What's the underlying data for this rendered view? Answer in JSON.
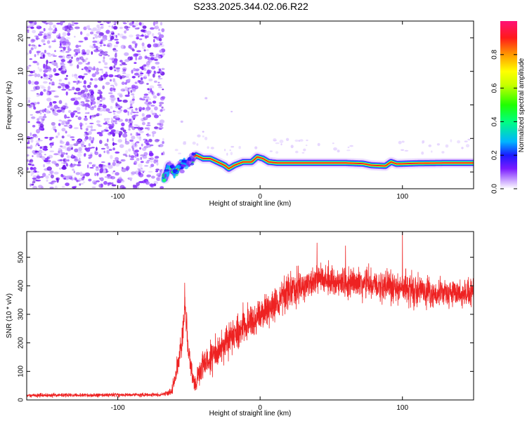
{
  "figure_title": "S233.2025.344.02.06.R22",
  "colors": {
    "spectro_low": "#7a1bff",
    "snr_line": "#ee2222",
    "axis": "#000000"
  },
  "chart_data": [
    {
      "type": "heatmap",
      "name": "spectrogram",
      "xlabel": "Height of straight line (km)",
      "ylabel": "Frequency (Hz)",
      "xlim": [
        -164,
        150
      ],
      "ylim": [
        -25,
        25
      ],
      "x_ticks": [
        -100,
        0,
        100
      ],
      "y_ticks": [
        -20,
        -10,
        0,
        10,
        20
      ],
      "grid": false,
      "noise_region_x": [
        -164,
        -68
      ],
      "ridge": {
        "description": "dominant frequency track",
        "points": [
          [
            -67,
            -22
          ],
          [
            -64,
            -18
          ],
          [
            -60,
            -20
          ],
          [
            -56,
            -18
          ],
          [
            -50,
            -17
          ],
          [
            -45,
            -15
          ],
          [
            -40,
            -16
          ],
          [
            -35,
            -16
          ],
          [
            -30,
            -17
          ],
          [
            -25,
            -18
          ],
          [
            -22,
            -19
          ],
          [
            -18,
            -18
          ],
          [
            -12,
            -17
          ],
          [
            -6,
            -17
          ],
          [
            -2,
            -15.5
          ],
          [
            2,
            -16
          ],
          [
            6,
            -17
          ],
          [
            12,
            -17.3
          ],
          [
            30,
            -17.3
          ],
          [
            60,
            -17.3
          ],
          [
            72,
            -17.5
          ],
          [
            78,
            -18
          ],
          [
            88,
            -18.2
          ],
          [
            92,
            -17
          ],
          [
            96,
            -17.6
          ],
          [
            110,
            -17.4
          ],
          [
            130,
            -17.3
          ],
          [
            150,
            -17.3
          ]
        ]
      },
      "colorbar": {
        "label": "Normalized spectral amplitude",
        "range": [
          0,
          1
        ],
        "ticks": [
          "0.0",
          "0.2",
          "0.4",
          "0.6",
          "0.8"
        ],
        "tick_values": [
          0.0,
          0.2,
          0.4,
          0.6,
          0.8
        ]
      }
    },
    {
      "type": "line",
      "name": "snr",
      "xlabel": "Height of straight line (km)",
      "ylabel": "SNR (10 * v/v)",
      "xlim": [
        -164,
        150
      ],
      "ylim": [
        0,
        590
      ],
      "x_ticks": [
        -100,
        0,
        100
      ],
      "y_ticks": [
        0,
        100,
        200,
        300,
        400,
        500
      ],
      "grid": false,
      "series": [
        {
          "name": "SNR",
          "envelope": {
            "description": "approximate mean level vs height; trace shows strong noisy fluctuation",
            "x": [
              -164,
              -70,
              -62,
              -58,
              -55,
              -53,
              -50,
              -46,
              -40,
              -30,
              -20,
              -10,
              0,
              10,
              20,
              40,
              60,
              80,
              100,
              120,
              150
            ],
            "mean": [
              16,
              18,
              30,
              120,
              190,
              330,
              160,
              50,
              120,
              170,
              220,
              260,
              300,
              340,
              380,
              420,
              410,
              410,
              390,
              380,
              370
            ],
            "spread": [
              8,
              8,
              20,
              50,
              60,
              60,
              60,
              40,
              70,
              80,
              80,
              80,
              80,
              80,
              80,
              70,
              70,
              70,
              70,
              70,
              60
            ]
          },
          "peaks": [
            {
              "x": -53,
              "y": 410
            },
            {
              "x": 100,
              "y": 590
            },
            {
              "x": 40,
              "y": 550
            },
            {
              "x": 60,
              "y": 540
            }
          ]
        }
      ]
    }
  ]
}
